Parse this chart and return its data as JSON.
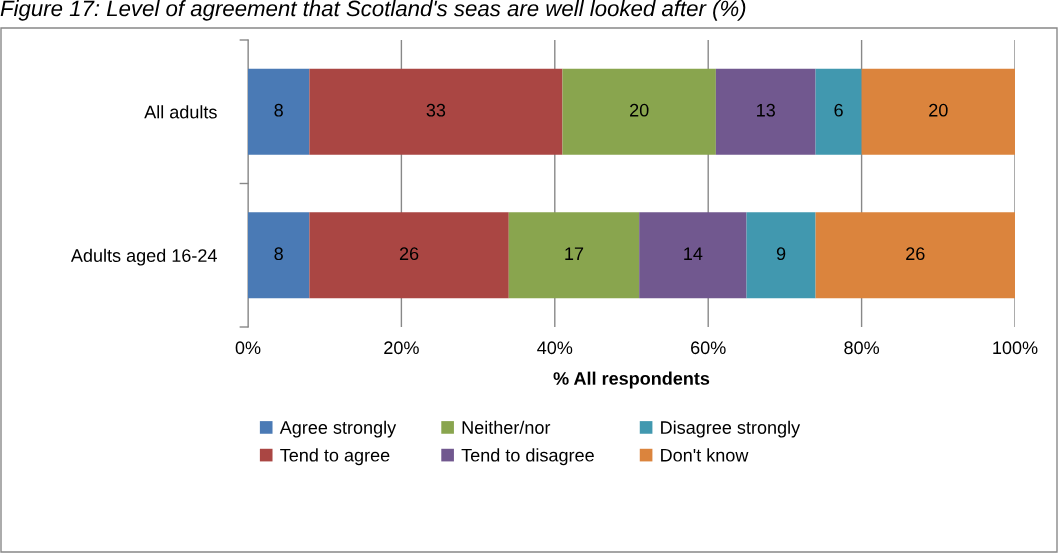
{
  "chart_data": {
    "type": "bar",
    "orientation": "horizontal",
    "stacked": true,
    "title": "Figure 17: Level of agreement that Scotland's seas are well looked after (%)",
    "xlabel": "% All respondents",
    "categories": [
      "All adults",
      "Adults aged 16-24"
    ],
    "series": [
      {
        "name": "Agree strongly",
        "color": "#4a7ab5",
        "values": [
          8,
          8
        ]
      },
      {
        "name": "Tend to agree",
        "color": "#aa4643",
        "values": [
          33,
          26
        ]
      },
      {
        "name": "Neither/nor",
        "color": "#89a54e",
        "values": [
          20,
          17
        ]
      },
      {
        "name": "Tend to disagree",
        "color": "#71588f",
        "values": [
          13,
          14
        ]
      },
      {
        "name": "Disagree strongly",
        "color": "#4198af",
        "values": [
          6,
          9
        ]
      },
      {
        "name": "Don't know",
        "color": "#db843d",
        "values": [
          20,
          26
        ]
      }
    ],
    "xlim": [
      0,
      100
    ],
    "xticks": [
      {
        "value": 0,
        "label": "0%"
      },
      {
        "value": 20,
        "label": "20%"
      },
      {
        "value": 40,
        "label": "40%"
      },
      {
        "value": 60,
        "label": "60%"
      },
      {
        "value": 80,
        "label": "80%"
      },
      {
        "value": 100,
        "label": "100%"
      }
    ],
    "data_labels": true,
    "grid": "x",
    "legend": "bottom"
  }
}
